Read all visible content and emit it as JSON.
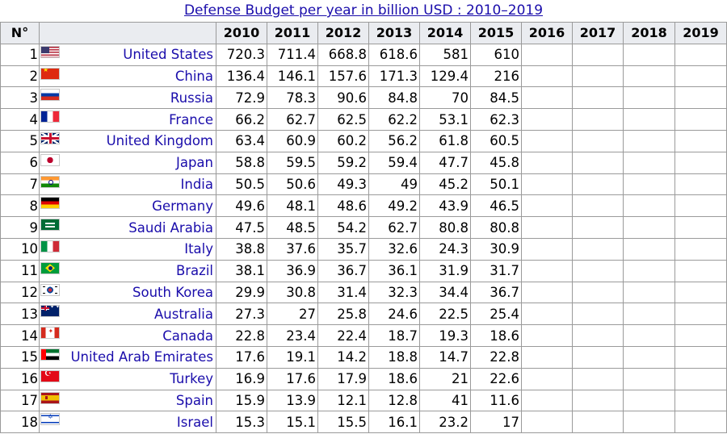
{
  "title": "Defense Budget per year in billion USD : 2010–2019",
  "headers": [
    "N°",
    "",
    "2010",
    "2011",
    "2012",
    "2013",
    "2014",
    "2015",
    "2016",
    "2017",
    "2018",
    "2019"
  ],
  "rows": [
    {
      "rank": "1",
      "flag": "flag-us",
      "country": "United States",
      "values": [
        "720.3",
        "711.4",
        "668.8",
        "618.6",
        "581",
        "610",
        "",
        "",
        "",
        ""
      ]
    },
    {
      "rank": "2",
      "flag": "flag-cn",
      "country": "China",
      "values": [
        "136.4",
        "146.1",
        "157.6",
        "171.3",
        "129.4",
        "216",
        "",
        "",
        "",
        ""
      ]
    },
    {
      "rank": "3",
      "flag": "flag-ru",
      "country": "Russia",
      "values": [
        "72.9",
        "78.3",
        "90.6",
        "84.8",
        "70",
        "84.5",
        "",
        "",
        "",
        ""
      ]
    },
    {
      "rank": "4",
      "flag": "flag-fr",
      "country": "France",
      "values": [
        "66.2",
        "62.7",
        "62.5",
        "62.2",
        "53.1",
        "62.3",
        "",
        "",
        "",
        ""
      ]
    },
    {
      "rank": "5",
      "flag": "flag-uk",
      "country": "United Kingdom",
      "values": [
        "63.4",
        "60.9",
        "60.2",
        "56.2",
        "61.8",
        "60.5",
        "",
        "",
        "",
        ""
      ]
    },
    {
      "rank": "6",
      "flag": "flag-jp",
      "country": "Japan",
      "values": [
        "58.8",
        "59.5",
        "59.2",
        "59.4",
        "47.7",
        "45.8",
        "",
        "",
        "",
        ""
      ]
    },
    {
      "rank": "7",
      "flag": "flag-in",
      "country": "India",
      "values": [
        "50.5",
        "50.6",
        "49.3",
        "49",
        "45.2",
        "50.1",
        "",
        "",
        "",
        ""
      ]
    },
    {
      "rank": "8",
      "flag": "flag-de",
      "country": "Germany",
      "values": [
        "49.6",
        "48.1",
        "48.6",
        "49.2",
        "43.9",
        "46.5",
        "",
        "",
        "",
        ""
      ]
    },
    {
      "rank": "9",
      "flag": "flag-sa",
      "country": "Saudi Arabia",
      "values": [
        "47.5",
        "48.5",
        "54.2",
        "62.7",
        "80.8",
        "80.8",
        "",
        "",
        "",
        ""
      ]
    },
    {
      "rank": "10",
      "flag": "flag-it",
      "country": "Italy",
      "values": [
        "38.8",
        "37.6",
        "35.7",
        "32.6",
        "24.3",
        "30.9",
        "",
        "",
        "",
        ""
      ]
    },
    {
      "rank": "11",
      "flag": "flag-br",
      "country": "Brazil",
      "values": [
        "38.1",
        "36.9",
        "36.7",
        "36.1",
        "31.9",
        "31.7",
        "",
        "",
        "",
        ""
      ]
    },
    {
      "rank": "12",
      "flag": "flag-kr",
      "country": "South Korea",
      "values": [
        "29.9",
        "30.8",
        "31.4",
        "32.3",
        "34.4",
        "36.7",
        "",
        "",
        "",
        ""
      ]
    },
    {
      "rank": "13",
      "flag": "flag-au",
      "country": "Australia",
      "values": [
        "27.3",
        "27",
        "25.8",
        "24.6",
        "22.5",
        "25.4",
        "",
        "",
        "",
        ""
      ]
    },
    {
      "rank": "14",
      "flag": "flag-ca",
      "country": "Canada",
      "values": [
        "22.8",
        "23.4",
        "22.4",
        "18.7",
        "19.3",
        "18.6",
        "",
        "",
        "",
        ""
      ]
    },
    {
      "rank": "15",
      "flag": "flag-ae",
      "country": "United Arab Emirates",
      "values": [
        "17.6",
        "19.1",
        "14.2",
        "18.8",
        "14.7",
        "22.8",
        "",
        "",
        "",
        ""
      ]
    },
    {
      "rank": "16",
      "flag": "flag-tr",
      "country": "Turkey",
      "values": [
        "16.9",
        "17.6",
        "17.9",
        "18.6",
        "21",
        "22.6",
        "",
        "",
        "",
        ""
      ]
    },
    {
      "rank": "17",
      "flag": "flag-es",
      "country": "Spain",
      "values": [
        "15.9",
        "13.9",
        "12.1",
        "12.8",
        "41",
        "11.6",
        "",
        "",
        "",
        ""
      ]
    },
    {
      "rank": "18",
      "flag": "flag-il",
      "country": "Israel",
      "values": [
        "15.3",
        "15.1",
        "15.5",
        "16.1",
        "23.2",
        "17",
        "",
        "",
        "",
        ""
      ]
    }
  ]
}
